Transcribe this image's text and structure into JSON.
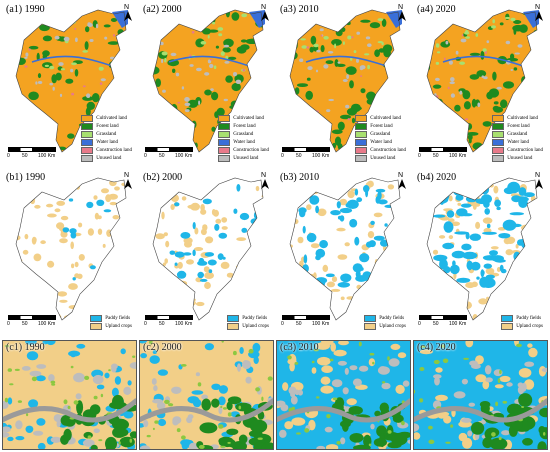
{
  "row_a": {
    "labels": [
      "(a1) 1990",
      "(a2) 2000",
      "(a3) 2010",
      "(a4) 2020"
    ],
    "legend": [
      {
        "label": "Cultivated land",
        "color": "#f4a321"
      },
      {
        "label": "Forest land",
        "color": "#1f8a1f"
      },
      {
        "label": "Grassland",
        "color": "#a8e070"
      },
      {
        "label": "Water land",
        "color": "#3a6fd8"
      },
      {
        "label": "Construction land",
        "color": "#e87a8a"
      },
      {
        "label": "Unused land",
        "color": "#bdbdbd"
      }
    ]
  },
  "row_b": {
    "labels": [
      "(b1) 1990",
      "(b2) 2000",
      "(b3) 2010",
      "(b4) 2020"
    ],
    "legend": [
      {
        "label": "Paddy fields",
        "color": "#1fb6e8"
      },
      {
        "label": "Upland crops",
        "color": "#f2cf88"
      }
    ]
  },
  "row_c": {
    "labels": [
      "(c1) 1990",
      "(c2) 2000",
      "(c3) 2010",
      "(c4) 2020"
    ]
  },
  "scale_bar": {
    "ticks": [
      "0",
      "50",
      "100 Km"
    ]
  },
  "north_label": "N"
}
